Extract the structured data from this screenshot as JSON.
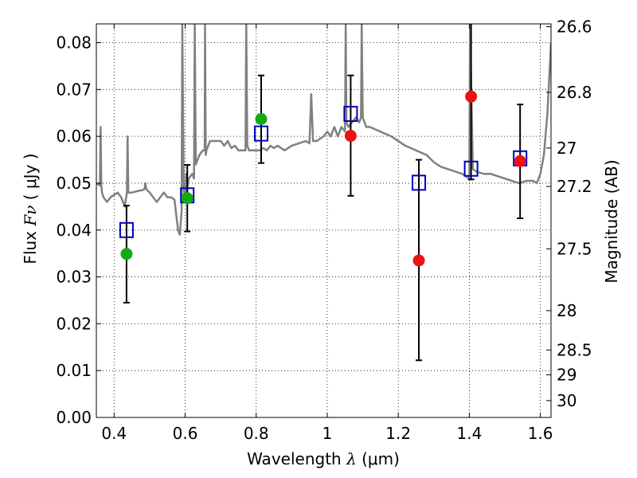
{
  "chart_data": {
    "type": "scatter",
    "xlabel": {
      "prefix": "Wavelength ",
      "symbol": "λ",
      "unit": "(μm)"
    },
    "ylabel": {
      "prefix": "Flux ",
      "symbol": "Fν",
      "unit": "( μJy )"
    },
    "y2label": "Magnitude (AB)",
    "xlim": [
      0.35,
      1.63
    ],
    "ylim": [
      0.0,
      0.084
    ],
    "grid": true,
    "legend": "none",
    "x_ticks": [
      0.4,
      0.6,
      0.8,
      1.0,
      1.2,
      1.4,
      1.6
    ],
    "x_tick_labels": [
      "0.4",
      "0.6",
      "0.8",
      "1",
      "1.2",
      "1.4",
      "1.6"
    ],
    "y_ticks": [
      0.0,
      0.01,
      0.02,
      0.03,
      0.04,
      0.05,
      0.06,
      0.07,
      0.08
    ],
    "y_tick_labels": [
      "0.00",
      "0.01",
      "0.02",
      "0.03",
      "0.04",
      "0.05",
      "0.06",
      "0.07",
      "0.08"
    ],
    "y2_ticks": [
      {
        "label": "26.6",
        "flux": 0.0834
      },
      {
        "label": "26.8",
        "flux": 0.0694
      },
      {
        "label": "27",
        "flux": 0.0575
      },
      {
        "label": "27.2",
        "flux": 0.0493
      },
      {
        "label": "27.5",
        "flux": 0.036
      },
      {
        "label": "28",
        "flux": 0.0228
      },
      {
        "label": "28.5",
        "flux": 0.0144
      },
      {
        "label": "29",
        "flux": 0.0091
      },
      {
        "label": "30",
        "flux": 0.0036
      }
    ],
    "colors": {
      "observed_green": "#11aa11",
      "observed_red": "#ee1111",
      "model_box": "#0000bb",
      "spectrum": "#808080",
      "errorbar": "#000000"
    },
    "series": [
      {
        "marker": "square",
        "points": [
          {
            "x": 0.435,
            "y": 0.04
          },
          {
            "x": 0.606,
            "y": 0.0474
          },
          {
            "x": 0.814,
            "y": 0.0606
          },
          {
            "x": 1.066,
            "y": 0.0648
          },
          {
            "x": 1.258,
            "y": 0.0501
          },
          {
            "x": 1.405,
            "y": 0.0531
          },
          {
            "x": 1.543,
            "y": 0.0553
          }
        ]
      },
      {
        "marker": "circle",
        "color_key": "observed_green",
        "points": [
          {
            "x": 0.435,
            "y": 0.0349,
            "err_low": 0.0245,
            "err_high": 0.0452
          },
          {
            "x": 0.606,
            "y": 0.0468,
            "err_low": 0.0397,
            "err_high": 0.0539
          },
          {
            "x": 0.814,
            "y": 0.0637,
            "err_low": 0.0543,
            "err_high": 0.073
          }
        ]
      },
      {
        "marker": "circle",
        "color_key": "observed_red",
        "points": [
          {
            "x": 1.066,
            "y": 0.0601,
            "err_low": 0.0473,
            "err_high": 0.073
          },
          {
            "x": 1.258,
            "y": 0.0335,
            "err_low": 0.0122,
            "err_high": 0.055
          },
          {
            "x": 1.405,
            "y": 0.0685,
            "err_low": 0.0508,
            "err_high": 0.087
          },
          {
            "x": 1.543,
            "y": 0.0547,
            "err_low": 0.0425,
            "err_high": 0.0668
          }
        ]
      },
      {
        "type": "line",
        "color_key": "spectrum",
        "x": [
          0.35,
          0.36,
          0.362,
          0.364,
          0.366,
          0.37,
          0.38,
          0.39,
          0.4,
          0.41,
          0.42,
          0.43,
          0.436,
          0.438,
          0.44,
          0.45,
          0.46,
          0.47,
          0.48,
          0.486,
          0.488,
          0.49,
          0.5,
          0.51,
          0.52,
          0.53,
          0.54,
          0.55,
          0.56,
          0.57,
          0.58,
          0.585,
          0.59,
          0.592,
          0.596,
          0.6,
          0.603,
          0.605,
          0.61,
          0.62,
          0.625,
          0.627,
          0.63,
          0.64,
          0.65,
          0.655,
          0.656,
          0.658,
          0.66,
          0.67,
          0.68,
          0.69,
          0.7,
          0.71,
          0.72,
          0.73,
          0.74,
          0.75,
          0.76,
          0.77,
          0.772,
          0.775,
          0.78,
          0.79,
          0.8,
          0.81,
          0.82,
          0.83,
          0.84,
          0.85,
          0.86,
          0.87,
          0.88,
          0.9,
          0.92,
          0.94,
          0.95,
          0.955,
          0.96,
          0.97,
          0.99,
          1.0,
          1.01,
          1.02,
          1.03,
          1.04,
          1.05,
          1.052,
          1.054,
          1.06,
          1.07,
          1.08,
          1.09,
          1.095,
          1.097,
          1.1,
          1.11,
          1.12,
          1.15,
          1.18,
          1.2,
          1.22,
          1.25,
          1.28,
          1.3,
          1.32,
          1.34,
          1.36,
          1.38,
          1.4,
          1.402,
          1.41,
          1.42,
          1.44,
          1.46,
          1.48,
          1.5,
          1.52,
          1.54,
          1.56,
          1.58,
          1.59,
          1.6,
          1.61,
          1.62,
          1.63
        ],
        "y": [
          0.05,
          0.0495,
          0.062,
          0.0495,
          0.048,
          0.047,
          0.046,
          0.047,
          0.0475,
          0.048,
          0.047,
          0.045,
          0.048,
          0.06,
          0.048,
          0.048,
          0.0482,
          0.0484,
          0.0485,
          0.0488,
          0.05,
          0.0488,
          0.048,
          0.047,
          0.046,
          0.047,
          0.048,
          0.047,
          0.047,
          0.0465,
          0.04,
          0.039,
          0.044,
          0.084,
          0.049,
          0.046,
          0.052,
          0.048,
          0.051,
          0.052,
          0.051,
          0.084,
          0.054,
          0.056,
          0.057,
          0.057,
          0.084,
          0.056,
          0.057,
          0.059,
          0.059,
          0.059,
          0.059,
          0.058,
          0.059,
          0.0575,
          0.058,
          0.057,
          0.057,
          0.057,
          0.084,
          0.058,
          0.057,
          0.057,
          0.057,
          0.057,
          0.0575,
          0.057,
          0.058,
          0.0575,
          0.058,
          0.0575,
          0.057,
          0.058,
          0.0585,
          0.059,
          0.0585,
          0.069,
          0.059,
          0.059,
          0.06,
          0.061,
          0.06,
          0.062,
          0.06,
          0.062,
          0.061,
          0.084,
          0.063,
          0.062,
          0.063,
          0.064,
          0.063,
          0.064,
          0.084,
          0.064,
          0.062,
          0.062,
          0.061,
          0.06,
          0.059,
          0.058,
          0.057,
          0.056,
          0.0545,
          0.0535,
          0.053,
          0.0525,
          0.052,
          0.051,
          0.084,
          0.053,
          0.0525,
          0.052,
          0.052,
          0.0515,
          0.051,
          0.0505,
          0.05,
          0.0505,
          0.0505,
          0.05,
          0.052,
          0.056,
          0.065,
          0.08
        ]
      }
    ]
  }
}
